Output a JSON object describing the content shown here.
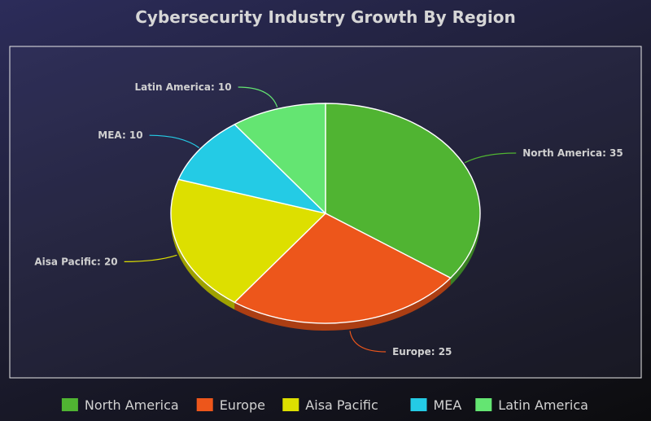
{
  "chart_data": {
    "type": "pie",
    "title": "Cybersecurity Industry Growth By Region",
    "categories": [
      "North America",
      "Europe",
      "Aisa Pacific",
      "MEA",
      "Latin America"
    ],
    "values": [
      35,
      25,
      20,
      10,
      10
    ],
    "colors": [
      "#50b432",
      "#ed561b",
      "#dddf00",
      "#24cbe5",
      "#64e572"
    ],
    "data_labels": [
      "North America: 35",
      "Europe: 25",
      "Aisa Pacific: 20",
      "MEA: 10",
      "Latin America: 10"
    ],
    "legend_position": "bottom"
  }
}
